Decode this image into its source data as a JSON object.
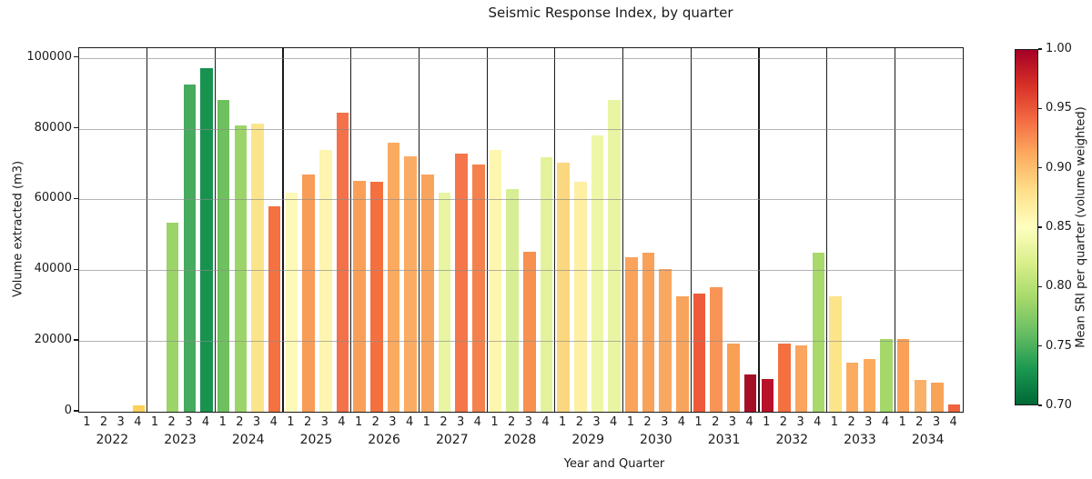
{
  "title": "Seismic Response Index, by quarter",
  "axes": {
    "x_label": "Year and Quarter",
    "y_label": "Volume extracted (m3)",
    "y_tick_labels": [
      "0",
      "20000",
      "40000",
      "60000",
      "80000",
      "100000"
    ],
    "quarter_labels": [
      "1",
      "2",
      "3",
      "4"
    ]
  },
  "colorbar": {
    "label": "Mean SRI per quarter (volume weighted)",
    "tick_labels": [
      "0.70",
      "0.75",
      "0.80",
      "0.85",
      "0.90",
      "0.95",
      "1.00"
    ],
    "min": 0.7,
    "max": 1.0,
    "gradient_top_to_bottom": [
      "#a50026",
      "#d73027",
      "#f46d43",
      "#fdae61",
      "#fee08b",
      "#ffffbf",
      "#d9ef8b",
      "#a6d96a",
      "#66bd63",
      "#1a9850",
      "#006837"
    ]
  },
  "chart_data": {
    "type": "bar",
    "title": "Seismic Response Index, by quarter",
    "xlabel": "Year and Quarter",
    "ylabel": "Volume extracted (m3)",
    "ylim": [
      0,
      102750
    ],
    "y_tick_values": [
      0,
      20000,
      40000,
      60000,
      80000,
      100000
    ],
    "grid": true,
    "legend_position": "right-colorbar",
    "color_encoding": "bar color encodes mean SRI per quarter on RdYlGn reversed scale, 0.70 (green) to 1.00 (dark red)",
    "quarters": [
      "1",
      "2",
      "3",
      "4"
    ],
    "years": [
      {
        "year": "2022",
        "values": [
          0,
          0,
          0,
          1700
        ],
        "sri": [
          null,
          null,
          null,
          0.89
        ],
        "colors": [
          null,
          null,
          null,
          "#fbd158"
        ]
      },
      {
        "year": "2023",
        "values": [
          0,
          53500,
          92500,
          97000
        ],
        "sri": [
          null,
          0.78,
          0.745,
          0.73
        ],
        "colors": [
          null,
          "#9bd567",
          "#46ab5e",
          "#17934f"
        ]
      },
      {
        "year": "2024",
        "values": [
          88000,
          81000,
          81500,
          58000
        ],
        "sri": [
          0.76,
          0.78,
          0.87,
          0.94
        ],
        "colors": [
          "#6fc05e",
          "#9bd569",
          "#fbe58c",
          "#f5713f"
        ]
      },
      {
        "year": "2025",
        "values": [
          61800,
          67000,
          74000,
          84500
        ],
        "sri": [
          0.85,
          0.92,
          0.85,
          0.94
        ],
        "colors": [
          "#fdf9b8",
          "#f99c57",
          "#fdf5b0",
          "#f4714a"
        ]
      },
      {
        "year": "2026",
        "values": [
          65300,
          65000,
          76000,
          72300
        ],
        "sri": [
          0.92,
          0.94,
          0.91,
          0.91
        ],
        "colors": [
          "#f9a058",
          "#f4703f",
          "#fbaa61",
          "#fbac64"
        ]
      },
      {
        "year": "2027",
        "values": [
          67000,
          62000,
          73000,
          69800
        ],
        "sri": [
          0.92,
          0.84,
          0.94,
          0.93
        ],
        "colors": [
          "#f9a45c",
          "#e9f5a0",
          "#f4764a",
          "#f5824d"
        ]
      },
      {
        "year": "2028",
        "values": [
          74000,
          63000,
          45200,
          71800
        ],
        "sri": [
          0.86,
          0.83,
          0.93,
          0.84
        ],
        "colors": [
          "#fdf6ae",
          "#d8ee94",
          "#f6914f",
          "#e4f29c"
        ]
      },
      {
        "year": "2029",
        "values": [
          70300,
          65000,
          78000,
          88000
        ],
        "sri": [
          0.88,
          0.86,
          0.84,
          0.84
        ],
        "colors": [
          "#fbd77f",
          "#fdf0a5",
          "#eef7a5",
          "#e9f5a2"
        ]
      },
      {
        "year": "2030",
        "values": [
          43800,
          45000,
          40300,
          32500
        ],
        "sri": [
          0.91,
          0.92,
          0.91,
          0.91
        ],
        "colors": [
          "#faa35c",
          "#f9a159",
          "#f9a861",
          "#f9a45c"
        ]
      },
      {
        "year": "2031",
        "values": [
          33500,
          35200,
          19300,
          10500
        ],
        "sri": [
          0.95,
          0.92,
          0.92,
          0.99
        ],
        "colors": [
          "#ee5a3a",
          "#f89455",
          "#f9a055",
          "#a50f26"
        ]
      },
      {
        "year": "2032",
        "values": [
          9300,
          19200,
          18800,
          45000
        ],
        "sri": [
          0.98,
          0.94,
          0.91,
          0.79
        ],
        "colors": [
          "#b8122b",
          "#f4713f",
          "#fba55e",
          "#a8d96a"
        ]
      },
      {
        "year": "2033",
        "values": [
          32500,
          14000,
          14800,
          20600
        ],
        "sri": [
          0.87,
          0.91,
          0.91,
          0.79
        ],
        "colors": [
          "#fce488",
          "#fbac60",
          "#fbaa5e",
          "#a5d86a"
        ]
      },
      {
        "year": "2034",
        "values": [
          20600,
          9000,
          8300,
          2000
        ],
        "sri": [
          0.92,
          0.91,
          0.92,
          0.95
        ],
        "colors": [
          "#f9a156",
          "#fbb068",
          "#f9a358",
          "#f0633c"
        ]
      }
    ]
  }
}
